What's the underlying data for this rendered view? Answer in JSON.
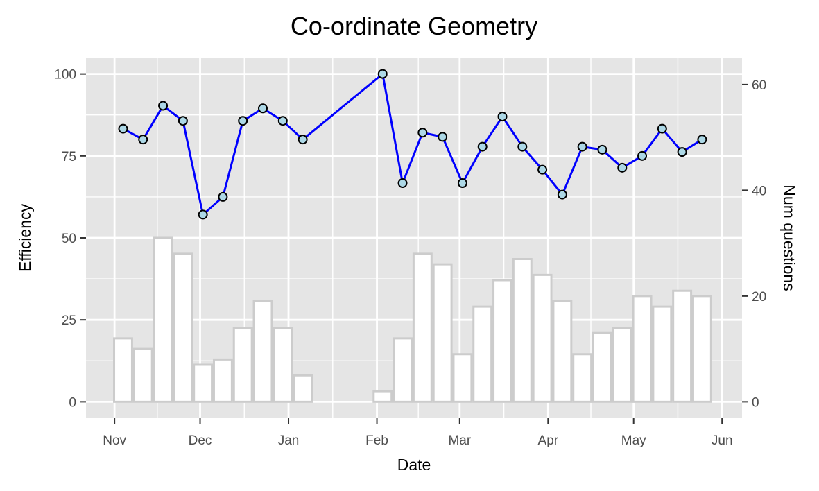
{
  "chart_data": {
    "type": "bar+line",
    "title": "Co-ordinate Geometry",
    "xlabel": "Date",
    "ylabel_left": "Efficiency",
    "ylabel_right": "Num questions",
    "grid": true,
    "legend": "none",
    "x_ticks": [
      {
        "label": "Nov",
        "date": "2023-11-01"
      },
      {
        "label": "Dec",
        "date": "2023-12-01"
      },
      {
        "label": "Jan",
        "date": "2024-01-01"
      },
      {
        "label": "Feb",
        "date": "2024-02-01"
      },
      {
        "label": "Mar",
        "date": "2024-03-01"
      },
      {
        "label": "Apr",
        "date": "2024-04-01"
      },
      {
        "label": "May",
        "date": "2024-05-01"
      },
      {
        "label": "Jun",
        "date": "2024-06-01"
      }
    ],
    "xlim": [
      "2023-10-22",
      "2024-06-08"
    ],
    "y_left": {
      "ticks": [
        0,
        25,
        50,
        75,
        100
      ],
      "ylim": [
        -5,
        105
      ]
    },
    "y_right": {
      "ticks": [
        0,
        20,
        40,
        60
      ],
      "ylim": [
        -3.1,
        65.1
      ]
    },
    "bars": {
      "name": "Num questions",
      "axis": "right",
      "fill": "#ffffff",
      "stroke": "#cccccc",
      "points": [
        {
          "date": "2023-11-04",
          "value": 12
        },
        {
          "date": "2023-11-11",
          "value": 10
        },
        {
          "date": "2023-11-18",
          "value": 31
        },
        {
          "date": "2023-11-25",
          "value": 28
        },
        {
          "date": "2023-12-02",
          "value": 7
        },
        {
          "date": "2023-12-09",
          "value": 8
        },
        {
          "date": "2023-12-16",
          "value": 14
        },
        {
          "date": "2023-12-23",
          "value": 19
        },
        {
          "date": "2023-12-30",
          "value": 14
        },
        {
          "date": "2024-01-06",
          "value": 5
        },
        {
          "date": "2024-02-03",
          "value": 2
        },
        {
          "date": "2024-02-10",
          "value": 12
        },
        {
          "date": "2024-02-17",
          "value": 28
        },
        {
          "date": "2024-02-24",
          "value": 26
        },
        {
          "date": "2024-03-02",
          "value": 9
        },
        {
          "date": "2024-03-09",
          "value": 18
        },
        {
          "date": "2024-03-16",
          "value": 23
        },
        {
          "date": "2024-03-23",
          "value": 27
        },
        {
          "date": "2024-03-30",
          "value": 24
        },
        {
          "date": "2024-04-06",
          "value": 19
        },
        {
          "date": "2024-04-13",
          "value": 9
        },
        {
          "date": "2024-04-20",
          "value": 13
        },
        {
          "date": "2024-04-27",
          "value": 14
        },
        {
          "date": "2024-05-04",
          "value": 20
        },
        {
          "date": "2024-05-11",
          "value": 18
        },
        {
          "date": "2024-05-18",
          "value": 21
        },
        {
          "date": "2024-05-25",
          "value": 20
        }
      ]
    },
    "line": {
      "name": "Efficiency",
      "axis": "left",
      "color": "#0000ff",
      "marker_fill": "#add8e6",
      "marker_stroke": "#000000",
      "points": [
        {
          "date": "2023-11-04",
          "value": 83.3
        },
        {
          "date": "2023-11-11",
          "value": 80
        },
        {
          "date": "2023-11-18",
          "value": 90.3
        },
        {
          "date": "2023-11-25",
          "value": 85.7
        },
        {
          "date": "2023-12-02",
          "value": 57.1
        },
        {
          "date": "2023-12-09",
          "value": 62.5
        },
        {
          "date": "2023-12-16",
          "value": 85.7
        },
        {
          "date": "2023-12-23",
          "value": 89.5
        },
        {
          "date": "2023-12-30",
          "value": 85.7
        },
        {
          "date": "2024-01-06",
          "value": 80
        },
        {
          "date": "2024-02-03",
          "value": 100
        },
        {
          "date": "2024-02-10",
          "value": 66.7
        },
        {
          "date": "2024-02-17",
          "value": 82.1
        },
        {
          "date": "2024-02-24",
          "value": 80.8
        },
        {
          "date": "2024-03-02",
          "value": 66.7
        },
        {
          "date": "2024-03-09",
          "value": 77.8
        },
        {
          "date": "2024-03-16",
          "value": 87
        },
        {
          "date": "2024-03-23",
          "value": 77.8
        },
        {
          "date": "2024-03-30",
          "value": 70.8
        },
        {
          "date": "2024-04-06",
          "value": 63.2
        },
        {
          "date": "2024-04-13",
          "value": 77.8
        },
        {
          "date": "2024-04-20",
          "value": 76.9
        },
        {
          "date": "2024-04-27",
          "value": 71.4
        },
        {
          "date": "2024-05-04",
          "value": 75
        },
        {
          "date": "2024-05-11",
          "value": 83.3
        },
        {
          "date": "2024-05-18",
          "value": 76.2
        },
        {
          "date": "2024-05-25",
          "value": 80
        }
      ]
    },
    "colors": {
      "panel_background": "#e5e5e5",
      "grid": "#ffffff",
      "tick_text": "#4d4d4d",
      "tick_mark": "#333333"
    }
  }
}
